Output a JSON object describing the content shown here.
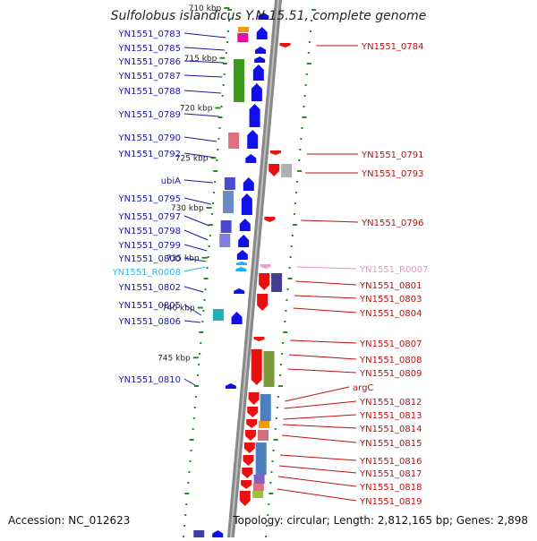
{
  "title": "Sulfolobus islandicus Y.N.15.51, complete genome",
  "footer": {
    "accession": "Accession: NC_012623",
    "summary": "Topology: circular; Length: 2,812,165 bp; Genes: 2,898"
  },
  "colors": {
    "forward": "#1010e8",
    "reverse": "#e81010",
    "rna_forward": "#1ab0ff",
    "rna_reverse": "#f0a0d0",
    "label_forward": "#1a1aa0",
    "label_reverse": "#c01010",
    "label_rna_forward": "#30b8f0",
    "label_rna_reverse": "#e890c8",
    "tick": "#2a8a2a",
    "backbone": "#888888"
  },
  "kbp_ticks": [
    {
      "kbp": 710,
      "label": "710 kbp"
    },
    {
      "kbp": 715,
      "label": "715 kbp"
    },
    {
      "kbp": 720,
      "label": "720 kbp"
    },
    {
      "kbp": 725,
      "label": "725 kbp"
    },
    {
      "kbp": 730,
      "label": "730 kbp"
    },
    {
      "kbp": 735,
      "label": "735 kbp"
    },
    {
      "kbp": 740,
      "label": "740 kbp"
    },
    {
      "kbp": 745,
      "label": "745 kbp"
    }
  ],
  "forward_labels": [
    {
      "text": "YN1551_0783",
      "kind": "gene"
    },
    {
      "text": "YN1551_0785",
      "kind": "gene"
    },
    {
      "text": "YN1551_0786",
      "kind": "gene"
    },
    {
      "text": "YN1551_0787",
      "kind": "gene"
    },
    {
      "text": "YN1551_0788",
      "kind": "gene"
    },
    {
      "text": "YN1551_0789",
      "kind": "gene"
    },
    {
      "text": "YN1551_0790",
      "kind": "gene"
    },
    {
      "text": "YN1551_0792",
      "kind": "gene"
    },
    {
      "text": "ubiA",
      "kind": "gene"
    },
    {
      "text": "YN1551_0795",
      "kind": "gene"
    },
    {
      "text": "YN1551_0797",
      "kind": "gene"
    },
    {
      "text": "YN1551_0798",
      "kind": "gene"
    },
    {
      "text": "YN1551_0799",
      "kind": "gene"
    },
    {
      "text": "YN1551_0800",
      "kind": "gene"
    },
    {
      "text": "YN1551_R0008",
      "kind": "rna"
    },
    {
      "text": "YN1551_0802",
      "kind": "gene"
    },
    {
      "text": "YN1551_0805",
      "kind": "gene"
    },
    {
      "text": "YN1551_0806",
      "kind": "gene"
    },
    {
      "text": "YN1551_0810",
      "kind": "gene"
    }
  ],
  "reverse_labels": [
    {
      "text": "YN1551_0784",
      "kind": "gene"
    },
    {
      "text": "YN1551_0791",
      "kind": "gene"
    },
    {
      "text": "YN1551_0793",
      "kind": "gene"
    },
    {
      "text": "YN1551_0796",
      "kind": "gene"
    },
    {
      "text": "YN1551_R0007",
      "kind": "rna"
    },
    {
      "text": "YN1551_0801",
      "kind": "gene"
    },
    {
      "text": "YN1551_0803",
      "kind": "gene"
    },
    {
      "text": "YN1551_0804",
      "kind": "gene"
    },
    {
      "text": "YN1551_0807",
      "kind": "gene"
    },
    {
      "text": "YN1551_0808",
      "kind": "gene"
    },
    {
      "text": "YN1551_0809",
      "kind": "gene"
    },
    {
      "text": "argC",
      "kind": "gene"
    },
    {
      "text": "YN1551_0812",
      "kind": "gene"
    },
    {
      "text": "YN1551_0813",
      "kind": "gene"
    },
    {
      "text": "YN1551_0814",
      "kind": "gene"
    },
    {
      "text": "YN1551_0815",
      "kind": "gene"
    },
    {
      "text": "YN1551_0816",
      "kind": "gene"
    },
    {
      "text": "YN1551_0817",
      "kind": "gene"
    },
    {
      "text": "YN1551_0818",
      "kind": "gene"
    },
    {
      "text": "YN1551_0819",
      "kind": "gene"
    }
  ]
}
